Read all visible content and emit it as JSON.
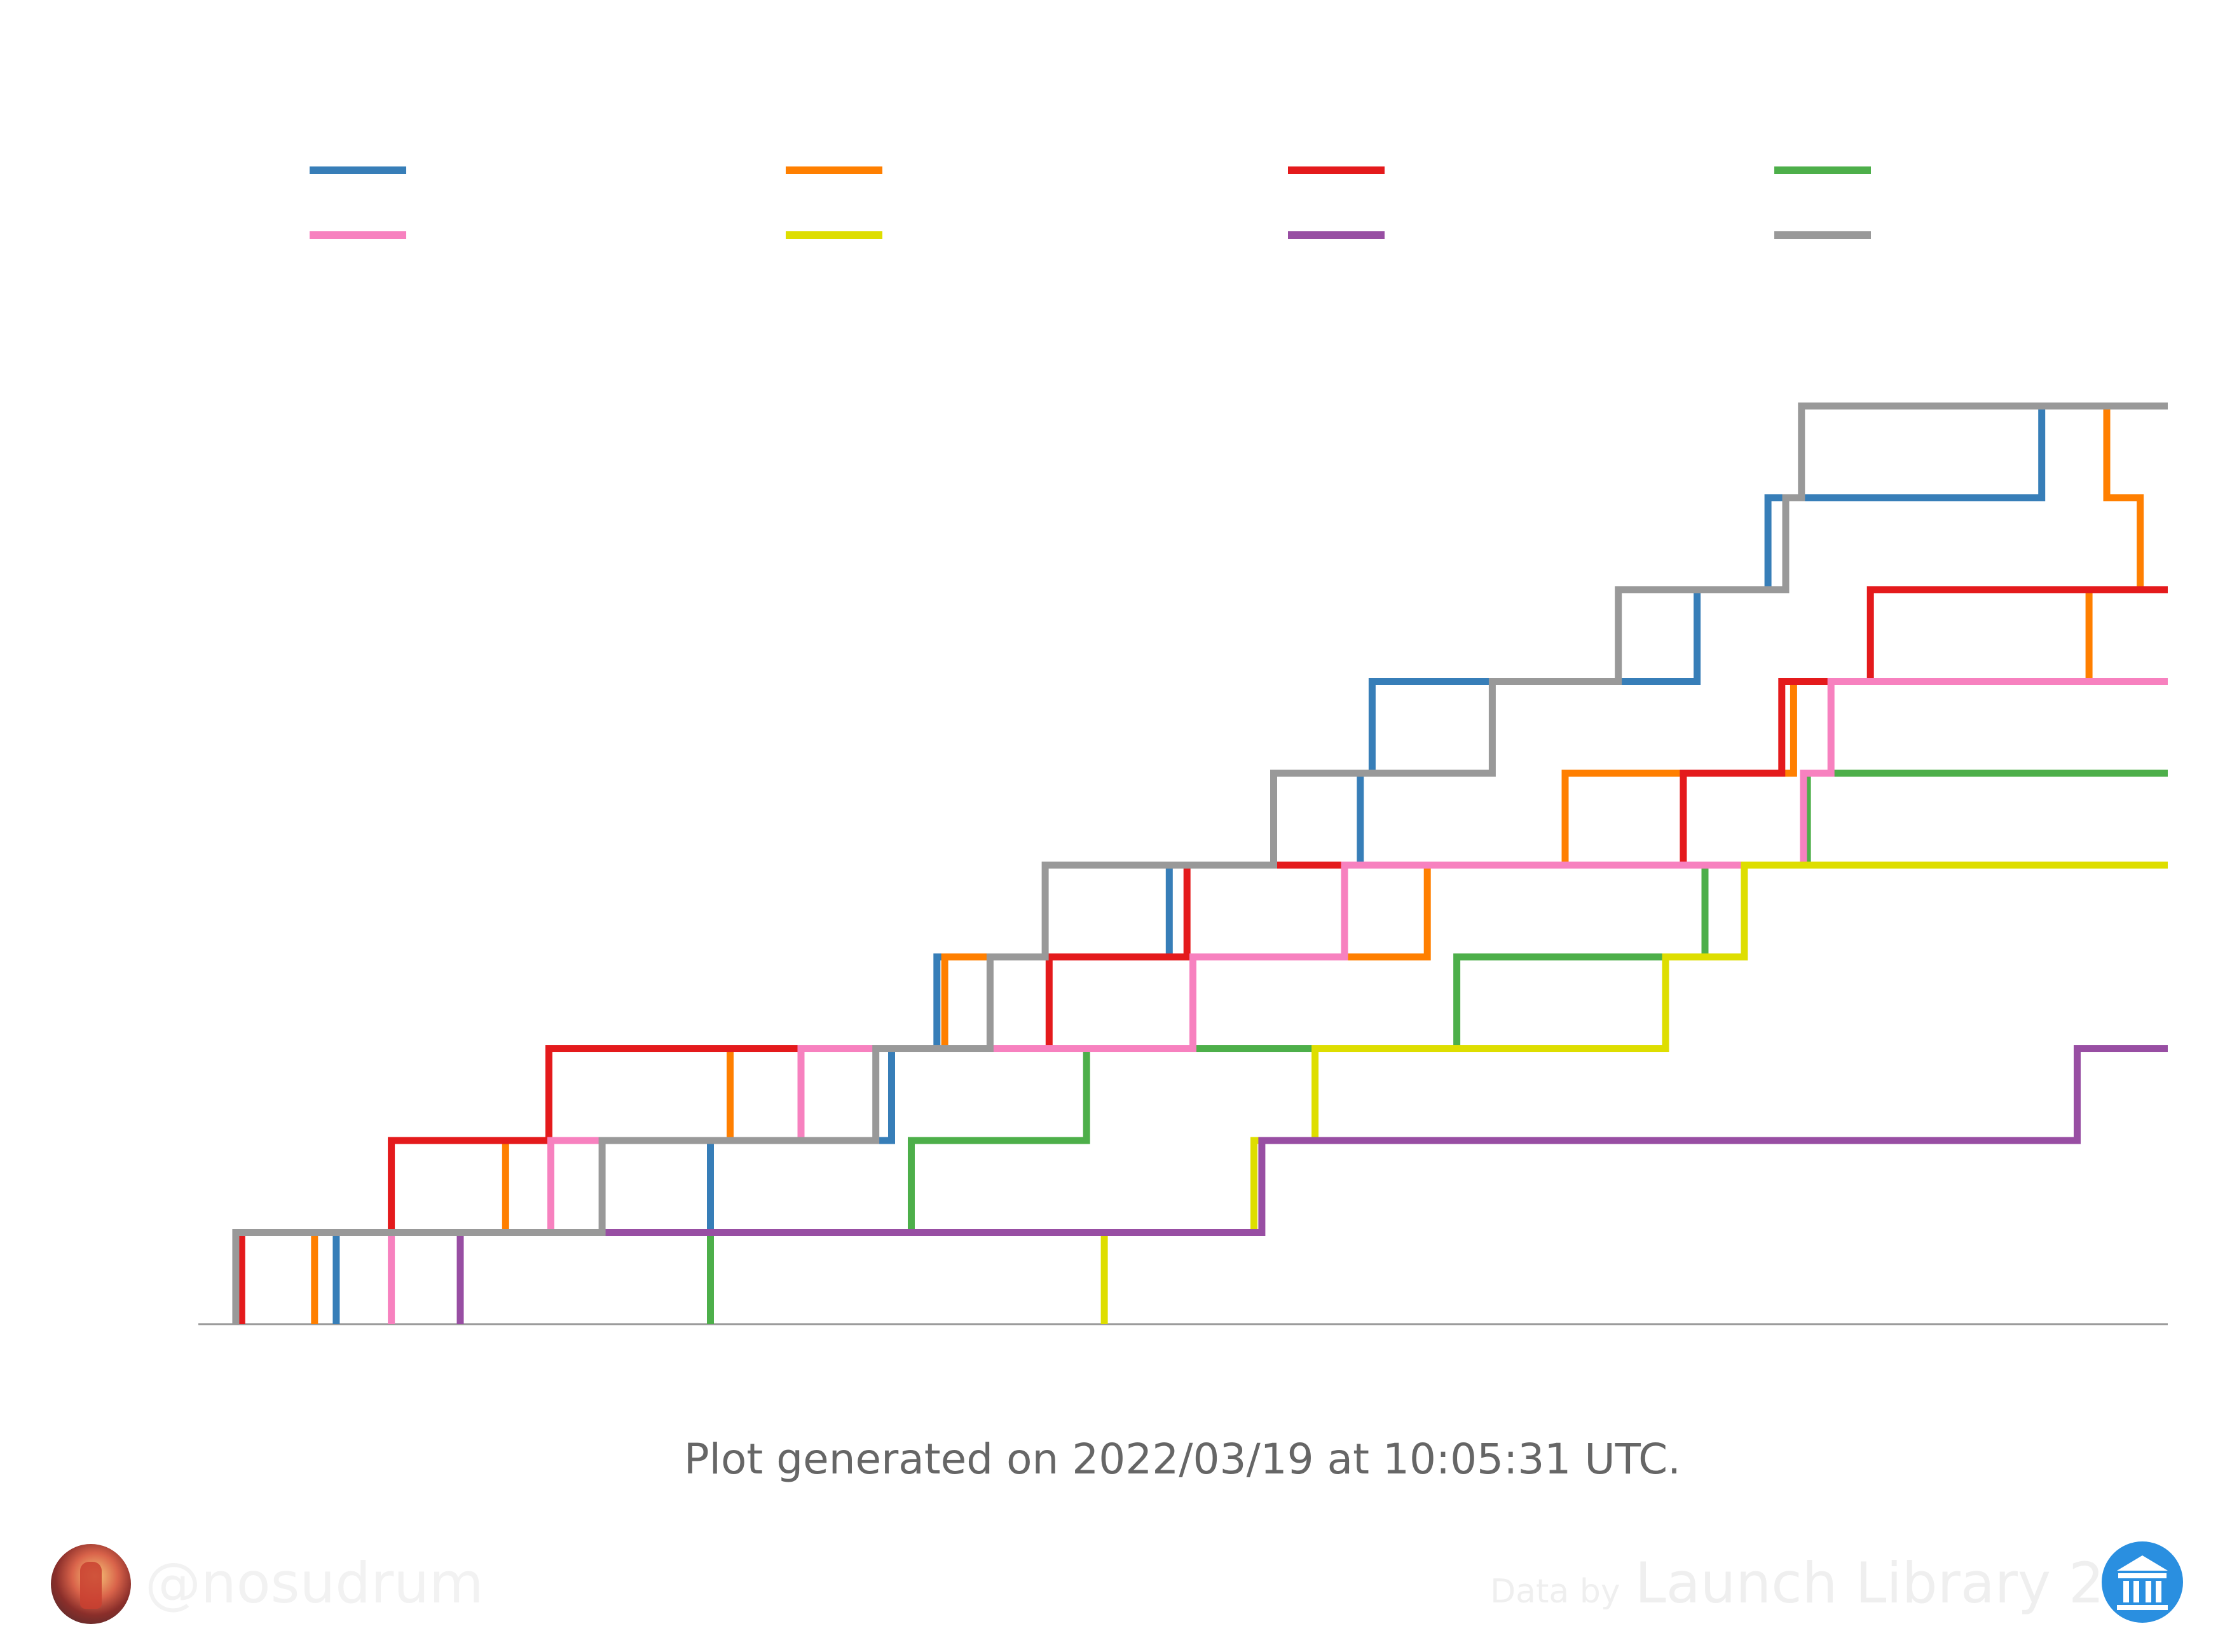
{
  "chart_data": {
    "type": "line",
    "title": "",
    "xlabel": "",
    "ylabel": "",
    "step": "post",
    "x_range": [
      0,
      1000
    ],
    "ylim": [
      0,
      11
    ],
    "grid": false,
    "legend": "top, 4 columns",
    "series": [
      {
        "color": "#377eb8",
        "points": [
          [
            70,
            0
          ],
          [
            70,
            1
          ],
          [
            260,
            1
          ],
          [
            260,
            2
          ],
          [
            352,
            2
          ],
          [
            352,
            3
          ],
          [
            375,
            3
          ],
          [
            375,
            4
          ],
          [
            493,
            4
          ],
          [
            493,
            5
          ],
          [
            590,
            5
          ],
          [
            590,
            6
          ],
          [
            596,
            6
          ],
          [
            596,
            7
          ],
          [
            761,
            7
          ],
          [
            761,
            8
          ],
          [
            797,
            8
          ],
          [
            797,
            9
          ],
          [
            936,
            9
          ],
          [
            936,
            10
          ],
          [
            1000,
            10
          ]
        ]
      },
      {
        "color": "#ff7f00",
        "points": [
          [
            59,
            0
          ],
          [
            59,
            1
          ],
          [
            156,
            1
          ],
          [
            156,
            2
          ],
          [
            270,
            2
          ],
          [
            270,
            3
          ],
          [
            379,
            3
          ],
          [
            379,
            4
          ],
          [
            624,
            4
          ],
          [
            624,
            5
          ],
          [
            694,
            5
          ],
          [
            694,
            6
          ],
          [
            810,
            6
          ],
          [
            810,
            7
          ],
          [
            960,
            7
          ],
          [
            960,
            8
          ],
          [
            986,
            8
          ],
          [
            986,
            9
          ],
          [
            969,
            9
          ],
          [
            969,
            10
          ],
          [
            1000,
            10
          ]
        ]
      },
      {
        "color": "#e41a1c",
        "points": [
          [
            22,
            0
          ],
          [
            22,
            1
          ],
          [
            98,
            1
          ],
          [
            98,
            2
          ],
          [
            178,
            2
          ],
          [
            178,
            3
          ],
          [
            432,
            3
          ],
          [
            432,
            4
          ],
          [
            502,
            4
          ],
          [
            502,
            5
          ],
          [
            754,
            5
          ],
          [
            754,
            6
          ],
          [
            804,
            6
          ],
          [
            804,
            7
          ],
          [
            849,
            7
          ],
          [
            849,
            8
          ],
          [
            1000,
            8
          ]
        ]
      },
      {
        "color": "#4daf4a",
        "points": [
          [
            260,
            0
          ],
          [
            260,
            1
          ],
          [
            362,
            1
          ],
          [
            362,
            2
          ],
          [
            451,
            2
          ],
          [
            451,
            3
          ],
          [
            639,
            3
          ],
          [
            639,
            4
          ],
          [
            765,
            4
          ],
          [
            765,
            5
          ],
          [
            817,
            5
          ],
          [
            817,
            6
          ],
          [
            1000,
            6
          ]
        ]
      },
      {
        "color": "#f781bf",
        "points": [
          [
            98,
            0
          ],
          [
            98,
            1
          ],
          [
            179,
            1
          ],
          [
            179,
            2
          ],
          [
            306,
            2
          ],
          [
            306,
            3
          ],
          [
            505,
            3
          ],
          [
            505,
            4
          ],
          [
            582,
            4
          ],
          [
            582,
            5
          ],
          [
            815,
            5
          ],
          [
            815,
            6
          ],
          [
            829,
            6
          ],
          [
            829,
            7
          ],
          [
            1000,
            7
          ]
        ]
      },
      {
        "color": "#dede00",
        "points": [
          [
            460,
            0
          ],
          [
            460,
            1
          ],
          [
            536,
            1
          ],
          [
            536,
            2
          ],
          [
            567,
            2
          ],
          [
            567,
            3
          ],
          [
            745,
            3
          ],
          [
            745,
            4
          ],
          [
            785,
            4
          ],
          [
            785,
            5
          ],
          [
            1000,
            5
          ]
        ]
      },
      {
        "color": "#984ea3",
        "points": [
          [
            133,
            0
          ],
          [
            133,
            1
          ],
          [
            540,
            1
          ],
          [
            540,
            2
          ],
          [
            954,
            2
          ],
          [
            954,
            3
          ],
          [
            1000,
            3
          ]
        ]
      },
      {
        "color": "#999999",
        "points": [
          [
            19,
            0
          ],
          [
            19,
            1
          ],
          [
            205,
            1
          ],
          [
            205,
            2
          ],
          [
            344,
            2
          ],
          [
            344,
            3
          ],
          [
            402,
            3
          ],
          [
            402,
            4
          ],
          [
            430,
            4
          ],
          [
            430,
            5
          ],
          [
            546,
            5
          ],
          [
            546,
            6
          ],
          [
            657,
            6
          ],
          [
            657,
            7
          ],
          [
            721,
            7
          ],
          [
            721,
            8
          ],
          [
            806,
            8
          ],
          [
            806,
            9
          ],
          [
            814,
            9
          ],
          [
            814,
            10
          ],
          [
            1000,
            10
          ]
        ]
      }
    ]
  },
  "footer": {
    "generated": "Plot generated on 2022/03/19 at 10:05:31 UTC.",
    "handle": "@nosudrum",
    "data_by": "Data by",
    "source": "Launch Library 2"
  },
  "icons": {
    "avatar": "author-avatar",
    "logo": "launch-library-logo"
  }
}
